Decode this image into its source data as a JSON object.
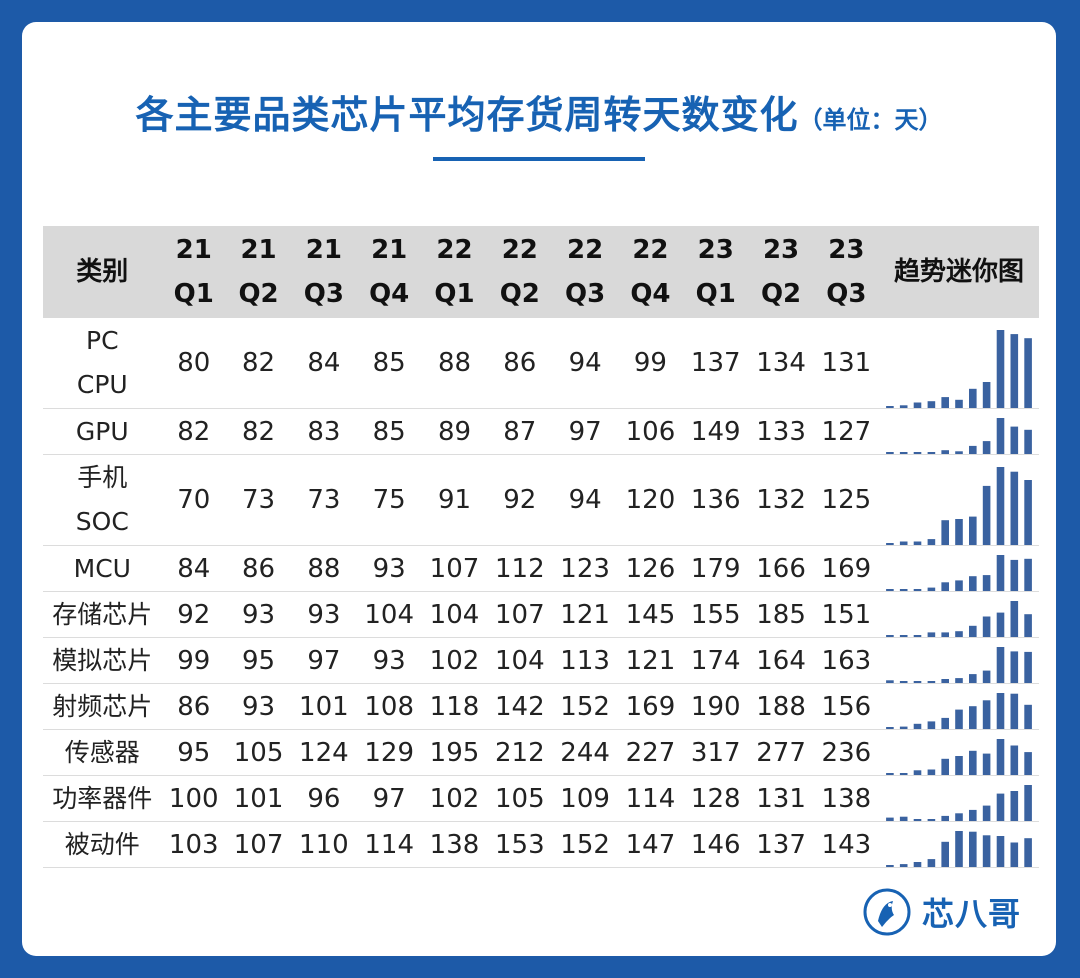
{
  "title": "各主要品类芯片平均存货周转天数变化",
  "unit": "（单位：天）",
  "logo_text": "芯八哥",
  "colors": {
    "background": "#1d5aa8",
    "title": "#1762b3",
    "header_bg": "#d9d9d9",
    "spark_bar": "#3a62a0"
  },
  "chart_data": {
    "type": "table",
    "columns": [
      "类别",
      "21 Q1",
      "21 Q2",
      "21 Q3",
      "21 Q4",
      "22 Q1",
      "22 Q2",
      "22 Q3",
      "22 Q4",
      "23 Q1",
      "23 Q2",
      "23 Q3",
      "趋势迷你图"
    ],
    "header": {
      "category": "类别",
      "periods": [
        {
          "year": "21",
          "quarter": "Q1"
        },
        {
          "year": "21",
          "quarter": "Q2"
        },
        {
          "year": "21",
          "quarter": "Q3"
        },
        {
          "year": "21",
          "quarter": "Q4"
        },
        {
          "year": "22",
          "quarter": "Q1"
        },
        {
          "year": "22",
          "quarter": "Q2"
        },
        {
          "year": "22",
          "quarter": "Q3"
        },
        {
          "year": "22",
          "quarter": "Q4"
        },
        {
          "year": "23",
          "quarter": "Q1"
        },
        {
          "year": "23",
          "quarter": "Q2"
        },
        {
          "year": "23",
          "quarter": "Q3"
        }
      ],
      "trend": "趋势迷你图"
    },
    "rows": [
      {
        "name": "PC CPU",
        "values": [
          80,
          82,
          84,
          85,
          88,
          86,
          94,
          99,
          137,
          134,
          131
        ]
      },
      {
        "name": "GPU",
        "values": [
          82,
          82,
          83,
          85,
          89,
          87,
          97,
          106,
          149,
          133,
          127
        ]
      },
      {
        "name": "手机 SOC",
        "values": [
          70,
          73,
          73,
          75,
          91,
          92,
          94,
          120,
          136,
          132,
          125
        ]
      },
      {
        "name": "MCU",
        "values": [
          84,
          86,
          88,
          93,
          107,
          112,
          123,
          126,
          179,
          166,
          169
        ]
      },
      {
        "name": "存储芯片",
        "values": [
          92,
          93,
          93,
          104,
          104,
          107,
          121,
          145,
          155,
          185,
          151
        ]
      },
      {
        "name": "模拟芯片",
        "values": [
          99,
          95,
          97,
          93,
          102,
          104,
          113,
          121,
          174,
          164,
          163
        ]
      },
      {
        "name": "射频芯片",
        "values": [
          86,
          93,
          101,
          108,
          118,
          142,
          152,
          169,
          190,
          188,
          156
        ]
      },
      {
        "name": "传感器",
        "values": [
          95,
          105,
          124,
          129,
          195,
          212,
          244,
          227,
          317,
          277,
          236
        ]
      },
      {
        "name": "功率器件",
        "values": [
          100,
          101,
          96,
          97,
          102,
          105,
          109,
          114,
          128,
          131,
          138
        ]
      },
      {
        "name": "被动件",
        "values": [
          103,
          107,
          110,
          114,
          138,
          153,
          152,
          147,
          146,
          137,
          143
        ]
      }
    ]
  }
}
